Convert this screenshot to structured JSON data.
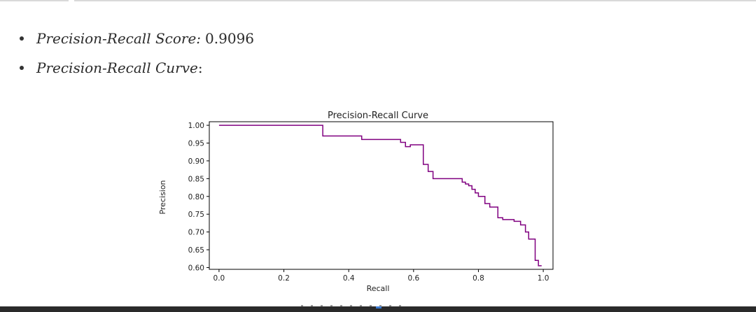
{
  "bullets": [
    {
      "label": "Precision-Recall Score:",
      "value": "0.9096"
    },
    {
      "label": "Precision-Recall Curve",
      "value": ":"
    }
  ],
  "chart_data": {
    "type": "line",
    "title": "Precision-Recall Curve",
    "xlabel": "Recall",
    "ylabel": "Precision",
    "xlim": [
      -0.03,
      1.03
    ],
    "ylim": [
      0.595,
      1.01
    ],
    "xticks": [
      "0.0",
      "0.2",
      "0.4",
      "0.6",
      "0.8",
      "1.0"
    ],
    "yticks": [
      "0.60",
      "0.65",
      "0.70",
      "0.75",
      "0.80",
      "0.85",
      "0.90",
      "0.95",
      "1.00"
    ],
    "grid": false,
    "line_color": "#800080",
    "series": [
      {
        "x": [
          0.0,
          0.32,
          0.32,
          0.44,
          0.44,
          0.56,
          0.56,
          0.575,
          0.575,
          0.59,
          0.59,
          0.63,
          0.63,
          0.645,
          0.645,
          0.66,
          0.66,
          0.75,
          0.75,
          0.76,
          0.76,
          0.77,
          0.77,
          0.78,
          0.78,
          0.79,
          0.79,
          0.8,
          0.8,
          0.82,
          0.82,
          0.835,
          0.835,
          0.86,
          0.86,
          0.875,
          0.875,
          0.89,
          0.89,
          0.91,
          0.91,
          0.93,
          0.93,
          0.945,
          0.945,
          0.955,
          0.955,
          0.975,
          0.975,
          0.985,
          0.985,
          0.995
        ],
        "y": [
          1.0,
          1.0,
          0.97,
          0.97,
          0.96,
          0.96,
          0.952,
          0.952,
          0.94,
          0.94,
          0.945,
          0.945,
          0.89,
          0.89,
          0.87,
          0.87,
          0.85,
          0.85,
          0.84,
          0.84,
          0.835,
          0.835,
          0.83,
          0.83,
          0.82,
          0.82,
          0.81,
          0.81,
          0.8,
          0.8,
          0.78,
          0.78,
          0.77,
          0.77,
          0.74,
          0.74,
          0.735,
          0.735,
          0.735,
          0.735,
          0.73,
          0.73,
          0.72,
          0.72,
          0.7,
          0.7,
          0.68,
          0.68,
          0.62,
          0.62,
          0.605,
          0.605
        ]
      }
    ]
  }
}
